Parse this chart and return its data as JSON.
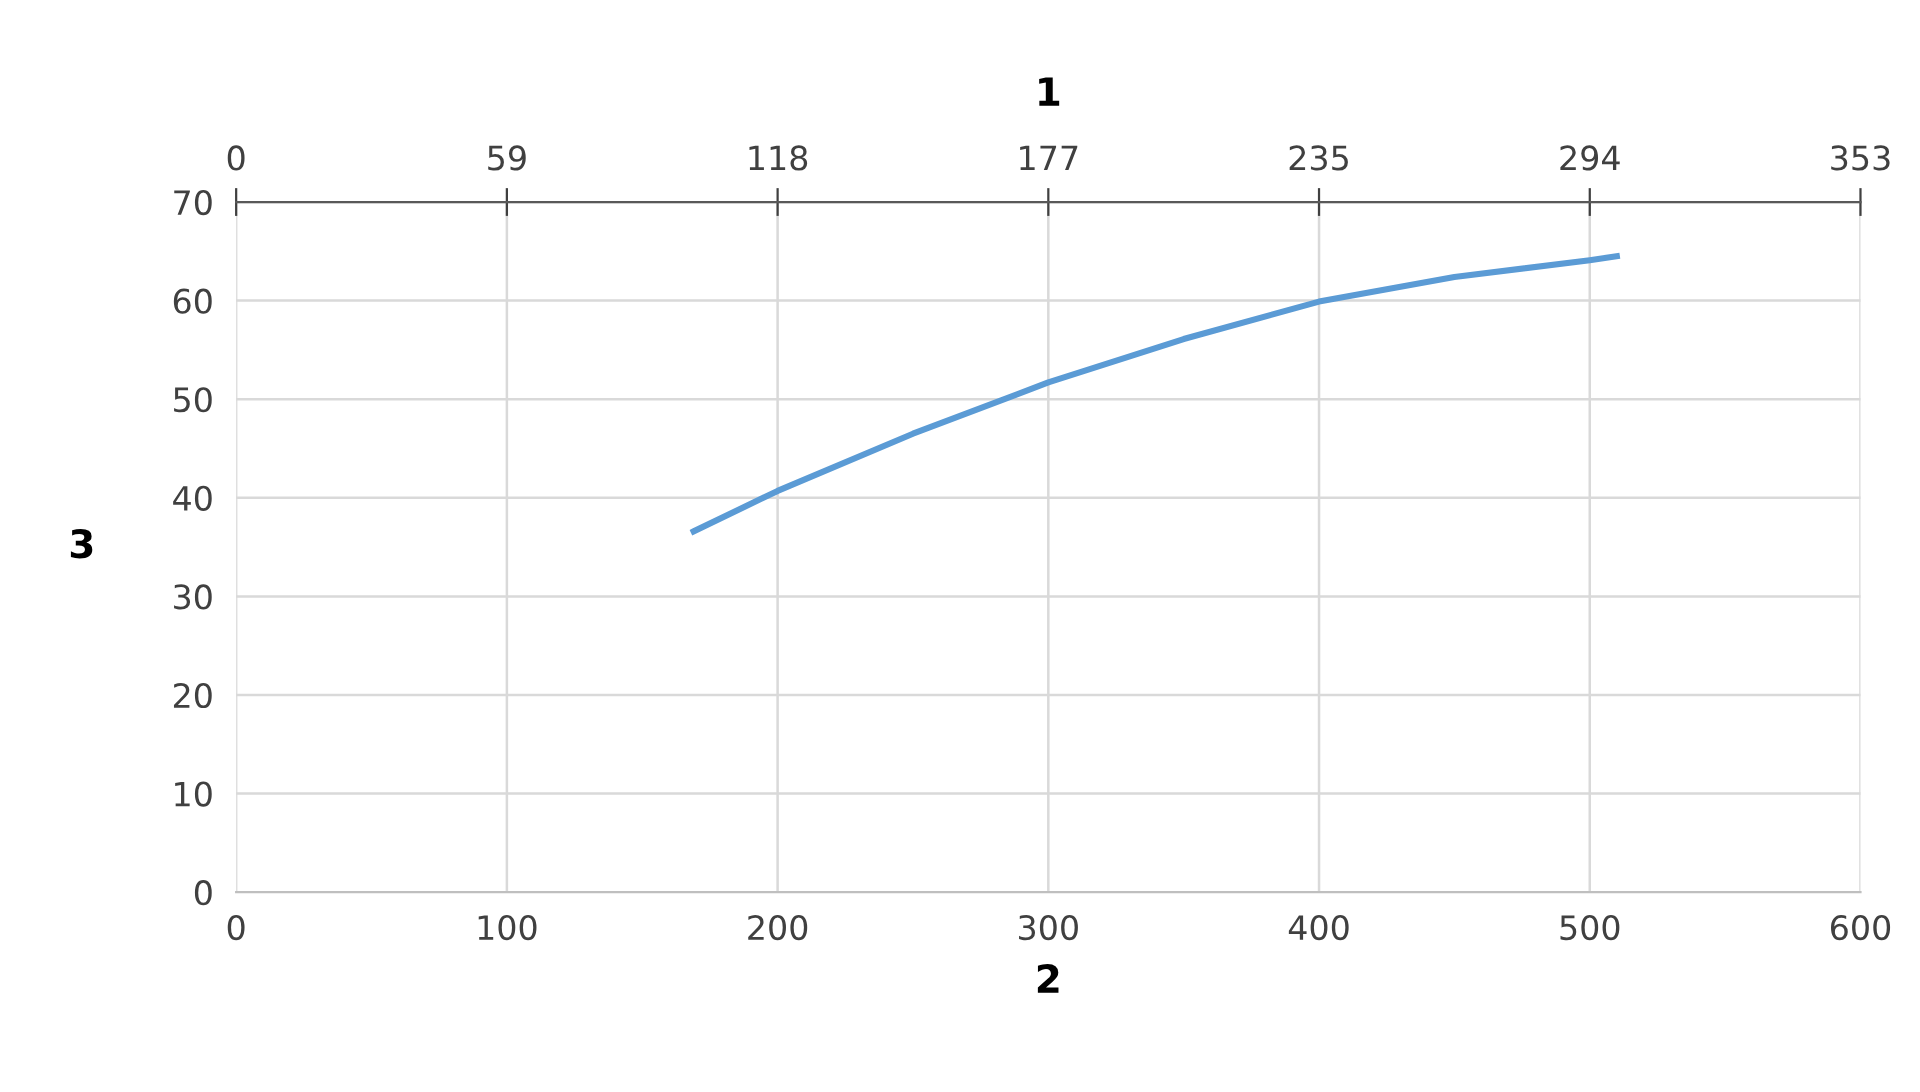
{
  "chart_data": {
    "type": "line",
    "x2label": "1",
    "xlabel": "2",
    "ylabel": "3",
    "x": [
      169,
      200,
      250,
      300,
      350,
      400,
      450,
      500,
      510
    ],
    "series": [
      {
        "color": "#5b9bd5",
        "values": [
          36.6,
          40.7,
          46.5,
          51.7,
          56.1,
          59.9,
          62.4,
          64.1,
          64.5
        ]
      }
    ],
    "xlim": [
      0,
      600
    ],
    "xticks": [
      0,
      100,
      200,
      300,
      400,
      500,
      600
    ],
    "ylim": [
      0,
      70
    ],
    "yticks": [
      0,
      10,
      20,
      30,
      40,
      50,
      60,
      70
    ],
    "x2lim": [
      0,
      353
    ],
    "x2ticks": [
      0,
      {
        "value": 58.83,
        "label": "59"
      },
      {
        "value": 117.67,
        "label": "118"
      },
      {
        "value": 176.5,
        "label": "177"
      },
      {
        "value": 235.33,
        "label": "235"
      },
      {
        "value": 294.17,
        "label": "294"
      },
      353
    ],
    "grid": true,
    "marker": "none",
    "line_style": "solid",
    "legend": false
  }
}
